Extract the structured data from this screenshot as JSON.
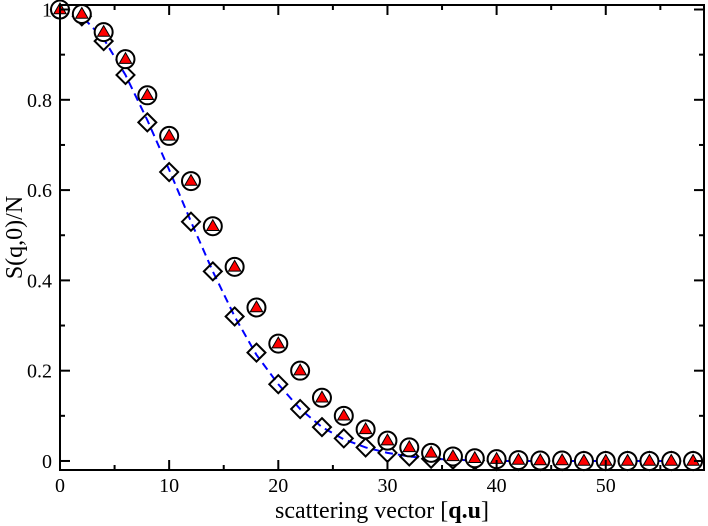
{
  "chart_data": {
    "type": "scatter",
    "title": "",
    "xlabel_main": "scattering vector [",
    "xlabel_bold": "q.u",
    "xlabel_end": "]",
    "ylabel": "S(q,0)/N",
    "xlim": [
      0,
      59
    ],
    "ylim": [
      -0.02,
      1.01
    ],
    "xticks": [
      0,
      10,
      20,
      30,
      40,
      50
    ],
    "yticks": [
      0,
      0.2,
      0.4,
      0.6,
      0.8,
      1
    ],
    "ytick_labels": [
      "0",
      "0.2",
      "0.4",
      "0.6",
      "0.8",
      "1"
    ],
    "xtick_labels": [
      "0",
      "10",
      "20",
      "30",
      "40",
      "50"
    ],
    "grid": false,
    "series": [
      {
        "name": "circles-with-red-triangles",
        "marker": "circle-triangle",
        "color": "#ff0000",
        "x": [
          0,
          2,
          4,
          6,
          8,
          10,
          12,
          14,
          16,
          18,
          20,
          22,
          24,
          26,
          28,
          30,
          32,
          34,
          36,
          38,
          40,
          42,
          44,
          46,
          48,
          50,
          52,
          54,
          56,
          58
        ],
        "y": [
          1.0,
          0.99,
          0.95,
          0.89,
          0.81,
          0.72,
          0.62,
          0.52,
          0.43,
          0.34,
          0.26,
          0.2,
          0.14,
          0.1,
          0.07,
          0.045,
          0.03,
          0.018,
          0.01,
          0.006,
          0.004,
          0.002,
          0.001,
          0.001,
          0.0,
          0.0,
          0.0,
          0.0,
          0.0,
          0.0
        ]
      },
      {
        "name": "diamonds",
        "marker": "diamond",
        "color": "#000000",
        "x": [
          0,
          2,
          4,
          6,
          8,
          10,
          12,
          14,
          16,
          18,
          20,
          22,
          24,
          26,
          28,
          30,
          32,
          34,
          36,
          38,
          40,
          42,
          44,
          46,
          48,
          50,
          52,
          54,
          56,
          58
        ],
        "y": [
          1.0,
          0.985,
          0.93,
          0.855,
          0.75,
          0.64,
          0.53,
          0.42,
          0.32,
          0.24,
          0.17,
          0.115,
          0.075,
          0.05,
          0.03,
          0.018,
          0.01,
          0.005,
          0.003,
          0.001,
          0.0,
          0.0,
          0.0,
          0.0,
          0.0,
          0.0,
          0.0,
          0.0,
          0.0,
          0.0
        ]
      },
      {
        "name": "dashed-fit",
        "marker": "line",
        "color": "#0000ff",
        "x": [
          0,
          2,
          4,
          6,
          8,
          10,
          12,
          14,
          16,
          18,
          20,
          22,
          24,
          26,
          28,
          30,
          32,
          34,
          36,
          38,
          40,
          45,
          50,
          55,
          59
        ],
        "y": [
          1.0,
          0.985,
          0.935,
          0.855,
          0.755,
          0.645,
          0.53,
          0.42,
          0.32,
          0.235,
          0.17,
          0.115,
          0.075,
          0.048,
          0.03,
          0.018,
          0.01,
          0.005,
          0.003,
          0.001,
          0.0,
          0.0,
          0.0,
          0.0,
          0.0
        ]
      }
    ]
  }
}
